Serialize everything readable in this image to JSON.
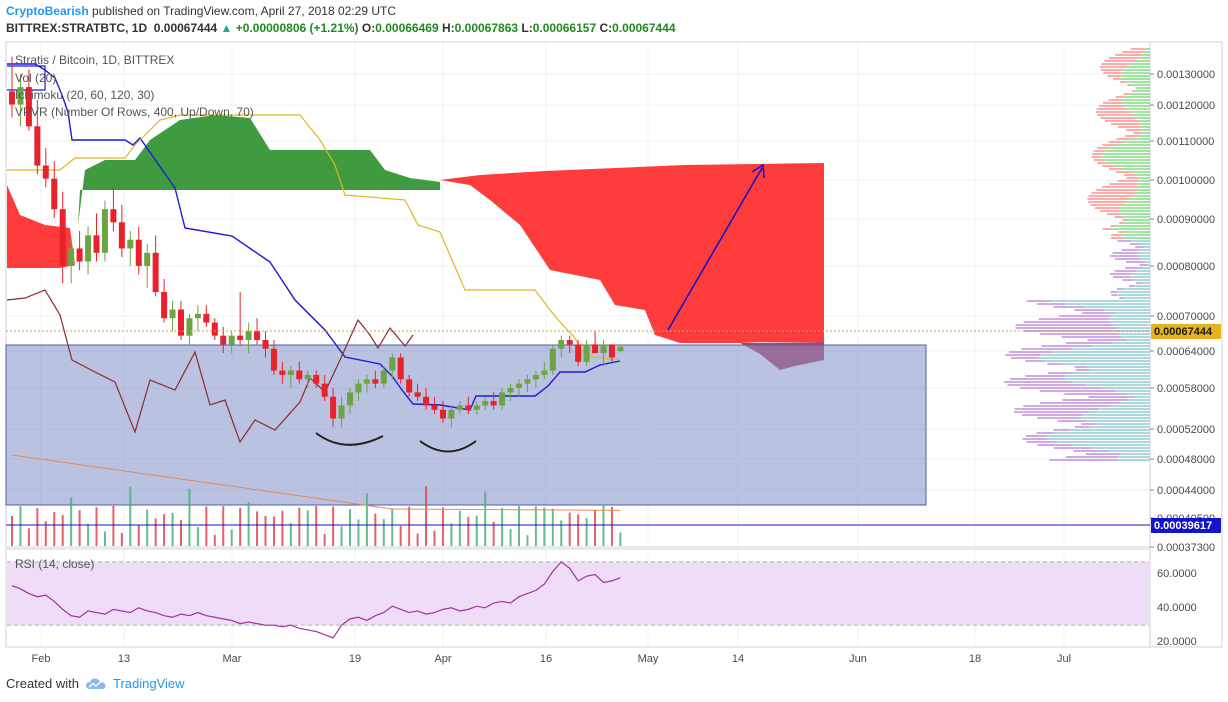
{
  "header": {
    "author": "CryptoBearish",
    "published": "published on TradingView.com, April 27, 2018 02:29 UTC",
    "symbol": "BITTREX:STRATBTC, 1D",
    "last": "0.00067444",
    "change": "+0.00000806 (+1.21%)",
    "o_label": "O:",
    "o": "0.00066469",
    "h_label": "H:",
    "h": "0.00067863",
    "l_label": "L:",
    "l": "0.00066157",
    "c_label": "C:",
    "c": "0.00067444"
  },
  "legend": {
    "title": "Stratis / Bitcoin, 1D, BITTREX",
    "vol": "Vol (20)",
    "ichimoku": "Ichimoku (20, 60, 120, 30)",
    "vpvr": "VPVR (Number Of Rows, 400, Up/Down, 70)",
    "rsi": "RSI (14, close)"
  },
  "footer": {
    "created_with": "Created with",
    "brand": "TradingView"
  },
  "colors": {
    "up": "#6ba543",
    "down": "#e8212a",
    "tenkan": "#1c1cd6",
    "kijun": "#e6b422",
    "chikou": "#8b2a2a",
    "cloud_bull": "#1e8a1e",
    "cloud_bear": "#ff1a1a",
    "box": "#7f8fc8",
    "rsi": "#a0349c",
    "rsi_band": "#efdcf7",
    "price_line": "#c9a34a",
    "blue_label": "#1414c8"
  },
  "chart_data": {
    "type": "candlestick",
    "title": "Stratis / Bitcoin, 1D, BITTREX",
    "x_labels": [
      "Feb",
      "13",
      "Mar",
      "19",
      "Apr",
      "16",
      "May",
      "14",
      "Jun",
      "18",
      "Jul"
    ],
    "y_ticks": [
      "0.00130000",
      "0.00120000",
      "0.00110000",
      "0.00100000",
      "0.00090000",
      "0.00080000",
      "0.00070000",
      "0.00064000",
      "0.00058000",
      "0.00052000",
      "0.00048000",
      "0.00044000",
      "0.00040500",
      "0.00037300"
    ],
    "ylim": [
      0.00035,
      0.00137
    ],
    "current_price_label": "0.00067444",
    "line_price_label": "0.00039617",
    "candles": [
      {
        "o": 0.00126,
        "h": 0.00134,
        "l": 0.0012,
        "c": 0.00123
      },
      {
        "o": 0.00123,
        "h": 0.0013,
        "l": 0.00118,
        "c": 0.00127
      },
      {
        "o": 0.00127,
        "h": 0.00131,
        "l": 0.00117,
        "c": 0.00118
      },
      {
        "o": 0.00118,
        "h": 0.00124,
        "l": 0.00107,
        "c": 0.00109
      },
      {
        "o": 0.00109,
        "h": 0.00113,
        "l": 0.00104,
        "c": 0.00106
      },
      {
        "o": 0.00106,
        "h": 0.0011,
        "l": 0.00097,
        "c": 0.00099
      },
      {
        "o": 0.00099,
        "h": 0.00103,
        "l": 0.00082,
        "c": 0.00086
      },
      {
        "o": 0.00086,
        "h": 0.00092,
        "l": 0.00082,
        "c": 0.0009
      },
      {
        "o": 0.0009,
        "h": 0.00094,
        "l": 0.00085,
        "c": 0.00087
      },
      {
        "o": 0.00087,
        "h": 0.00095,
        "l": 0.00084,
        "c": 0.00093
      },
      {
        "o": 0.00093,
        "h": 0.00098,
        "l": 0.00087,
        "c": 0.00089
      },
      {
        "o": 0.00089,
        "h": 0.00101,
        "l": 0.00087,
        "c": 0.00099
      },
      {
        "o": 0.00099,
        "h": 0.00104,
        "l": 0.00094,
        "c": 0.00096
      },
      {
        "o": 0.00096,
        "h": 0.001,
        "l": 0.00088,
        "c": 0.0009
      },
      {
        "o": 0.0009,
        "h": 0.00094,
        "l": 0.00086,
        "c": 0.00092
      },
      {
        "o": 0.00092,
        "h": 0.00095,
        "l": 0.00084,
        "c": 0.00086
      },
      {
        "o": 0.00086,
        "h": 0.00091,
        "l": 0.00081,
        "c": 0.00089
      },
      {
        "o": 0.00089,
        "h": 0.00093,
        "l": 0.00079,
        "c": 0.0008
      },
      {
        "o": 0.0008,
        "h": 0.00083,
        "l": 0.00073,
        "c": 0.00074
      },
      {
        "o": 0.00074,
        "h": 0.00078,
        "l": 0.00071,
        "c": 0.00076
      },
      {
        "o": 0.00076,
        "h": 0.00078,
        "l": 0.00069,
        "c": 0.0007
      },
      {
        "o": 0.0007,
        "h": 0.00075,
        "l": 0.00068,
        "c": 0.00074
      },
      {
        "o": 0.00074,
        "h": 0.00077,
        "l": 0.00071,
        "c": 0.00075
      },
      {
        "o": 0.00075,
        "h": 0.00077,
        "l": 0.00072,
        "c": 0.00073
      },
      {
        "o": 0.00073,
        "h": 0.00074,
        "l": 0.00069,
        "c": 0.0007
      },
      {
        "o": 0.0007,
        "h": 0.00072,
        "l": 0.00066,
        "c": 0.00068
      },
      {
        "o": 0.00068,
        "h": 0.00071,
        "l": 0.00066,
        "c": 0.0007
      },
      {
        "o": 0.0007,
        "h": 0.0008,
        "l": 0.00068,
        "c": 0.00069
      },
      {
        "o": 0.00069,
        "h": 0.00073,
        "l": 0.00066,
        "c": 0.00071
      },
      {
        "o": 0.00071,
        "h": 0.00074,
        "l": 0.00068,
        "c": 0.00069
      },
      {
        "o": 0.00069,
        "h": 0.00071,
        "l": 0.00065,
        "c": 0.00067
      },
      {
        "o": 0.00067,
        "h": 0.00069,
        "l": 0.00061,
        "c": 0.00062
      },
      {
        "o": 0.00062,
        "h": 0.00064,
        "l": 0.00059,
        "c": 0.00061
      },
      {
        "o": 0.00061,
        "h": 0.00063,
        "l": 0.00058,
        "c": 0.00062
      },
      {
        "o": 0.00062,
        "h": 0.00064,
        "l": 0.00059,
        "c": 0.0006
      },
      {
        "o": 0.0006,
        "h": 0.00062,
        "l": 0.00058,
        "c": 0.00061
      },
      {
        "o": 0.00061,
        "h": 0.00062,
        "l": 0.00058,
        "c": 0.00059
      },
      {
        "o": 0.00059,
        "h": 0.00061,
        "l": 0.00055,
        "c": 0.00056
      },
      {
        "o": 0.00056,
        "h": 0.00058,
        "l": 0.00049,
        "c": 0.00051
      },
      {
        "o": 0.00051,
        "h": 0.00056,
        "l": 0.00049,
        "c": 0.00054
      },
      {
        "o": 0.00054,
        "h": 0.00058,
        "l": 0.00052,
        "c": 0.00057
      },
      {
        "o": 0.00057,
        "h": 0.0006,
        "l": 0.00055,
        "c": 0.00059
      },
      {
        "o": 0.00059,
        "h": 0.00061,
        "l": 0.00057,
        "c": 0.0006
      },
      {
        "o": 0.0006,
        "h": 0.00062,
        "l": 0.00058,
        "c": 0.00059
      },
      {
        "o": 0.00059,
        "h": 0.00063,
        "l": 0.00058,
        "c": 0.00062
      },
      {
        "o": 0.00062,
        "h": 0.00066,
        "l": 0.0006,
        "c": 0.00065
      },
      {
        "o": 0.00065,
        "h": 0.00066,
        "l": 0.00059,
        "c": 0.0006
      },
      {
        "o": 0.0006,
        "h": 0.00061,
        "l": 0.00056,
        "c": 0.00057
      },
      {
        "o": 0.00057,
        "h": 0.00059,
        "l": 0.00055,
        "c": 0.00056
      },
      {
        "o": 0.00056,
        "h": 0.00058,
        "l": 0.00053,
        "c": 0.00054
      },
      {
        "o": 0.00054,
        "h": 0.00056,
        "l": 0.00052,
        "c": 0.00053
      },
      {
        "o": 0.00053,
        "h": 0.00055,
        "l": 0.0005,
        "c": 0.00051
      },
      {
        "o": 0.00051,
        "h": 0.00054,
        "l": 0.00049,
        "c": 0.00053
      },
      {
        "o": 0.00053,
        "h": 0.00055,
        "l": 0.00052,
        "c": 0.00054
      },
      {
        "o": 0.00054,
        "h": 0.00056,
        "l": 0.00052,
        "c": 0.00053
      },
      {
        "o": 0.00053,
        "h": 0.00055,
        "l": 0.00052,
        "c": 0.00054
      },
      {
        "o": 0.00054,
        "h": 0.00056,
        "l": 0.00053,
        "c": 0.00055
      },
      {
        "o": 0.00055,
        "h": 0.00057,
        "l": 0.00053,
        "c": 0.00054
      },
      {
        "o": 0.00054,
        "h": 0.00058,
        "l": 0.00053,
        "c": 0.00057
      },
      {
        "o": 0.00057,
        "h": 0.00059,
        "l": 0.00055,
        "c": 0.00058
      },
      {
        "o": 0.00058,
        "h": 0.0006,
        "l": 0.00056,
        "c": 0.00059
      },
      {
        "o": 0.00059,
        "h": 0.00061,
        "l": 0.00057,
        "c": 0.0006
      },
      {
        "o": 0.0006,
        "h": 0.00062,
        "l": 0.00058,
        "c": 0.00061
      },
      {
        "o": 0.00061,
        "h": 0.00064,
        "l": 0.0006,
        "c": 0.00062
      },
      {
        "o": 0.00062,
        "h": 0.00068,
        "l": 0.00061,
        "c": 0.00067
      },
      {
        "o": 0.00067,
        "h": 0.0007,
        "l": 0.00065,
        "c": 0.00069
      },
      {
        "o": 0.00069,
        "h": 0.0007,
        "l": 0.00066,
        "c": 0.00068
      },
      {
        "o": 0.00068,
        "h": 0.00069,
        "l": 0.00063,
        "c": 0.00064
      },
      {
        "o": 0.00064,
        "h": 0.00069,
        "l": 0.00063,
        "c": 0.00068
      },
      {
        "o": 0.00068,
        "h": 0.00071,
        "l": 0.00066,
        "c": 0.00066
      },
      {
        "o": 0.00066,
        "h": 0.00069,
        "l": 0.00063,
        "c": 0.00068
      },
      {
        "o": 0.00068,
        "h": 0.00068,
        "l": 0.00064,
        "c": 0.00065
      },
      {
        "o": 0.00066469,
        "h": 0.00067863,
        "l": 0.00066157,
        "c": 0.00067444
      }
    ],
    "rsi": {
      "ylim": [
        20,
        75
      ],
      "ticks": [
        "60.0000",
        "40.0000",
        "20.0000"
      ],
      "upper_band": 70,
      "lower_band": 30,
      "values": [
        55,
        53,
        50,
        48,
        49,
        45,
        40,
        36,
        35,
        39,
        38,
        37,
        40,
        39,
        38,
        41,
        39,
        38,
        36,
        35,
        37,
        36,
        38,
        36,
        35,
        34,
        33,
        31,
        32,
        31,
        30,
        30,
        29,
        30,
        28,
        27,
        26,
        24,
        22,
        30,
        34,
        35,
        33,
        36,
        38,
        42,
        40,
        38,
        39,
        37,
        38,
        40,
        41,
        39,
        40,
        42,
        41,
        44,
        45,
        44,
        48,
        50,
        52,
        56,
        64,
        70,
        66,
        58,
        61,
        62,
        57,
        58,
        60
      ]
    }
  }
}
